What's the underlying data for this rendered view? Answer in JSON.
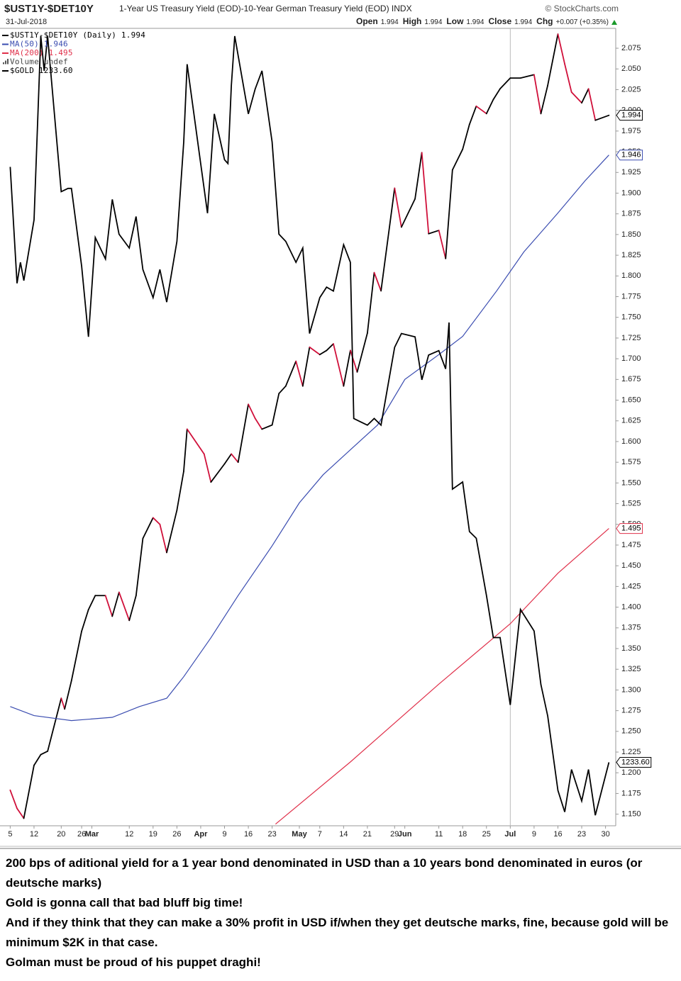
{
  "chart_data": {
    "type": "line",
    "title": "$UST1Y-$DET10Y",
    "subtitle": "1-Year US Treasury Yield (EOD)-10-Year German Treasury Yield (EOD) INDX",
    "source": "© StockCharts.com",
    "date": "31-Jul-2018",
    "quote": [
      {
        "label": "Open",
        "value": "1.994"
      },
      {
        "label": "High",
        "value": "1.994"
      },
      {
        "label": "Low",
        "value": "1.994"
      },
      {
        "label": "Close",
        "value": "1.994"
      },
      {
        "label": "Chg",
        "value": "+0.007 (+0.35%)"
      }
    ],
    "legend_notes": [
      "Volume undef"
    ],
    "xlim": [
      "2018-02-02",
      "2018-08-02"
    ],
    "xticks": [
      {
        "value": "2018-02-05",
        "label": "5"
      },
      {
        "value": "2018-02-12",
        "label": "12"
      },
      {
        "value": "2018-02-20",
        "label": "20"
      },
      {
        "value": "2018-02-26",
        "label": "26"
      },
      {
        "value": "2018-03-01",
        "label": "Mar"
      },
      {
        "value": "2018-03-12",
        "label": "12"
      },
      {
        "value": "2018-03-19",
        "label": "19"
      },
      {
        "value": "2018-03-26",
        "label": "26"
      },
      {
        "value": "2018-04-02",
        "label": "Apr"
      },
      {
        "value": "2018-04-09",
        "label": "9"
      },
      {
        "value": "2018-04-16",
        "label": "16"
      },
      {
        "value": "2018-04-23",
        "label": "23"
      },
      {
        "value": "2018-05-01",
        "label": "May"
      },
      {
        "value": "2018-05-07",
        "label": "7"
      },
      {
        "value": "2018-05-14",
        "label": "14"
      },
      {
        "value": "2018-05-21",
        "label": "21"
      },
      {
        "value": "2018-05-29",
        "label": "29"
      },
      {
        "value": "2018-06-01",
        "label": "Jun"
      },
      {
        "value": "2018-06-11",
        "label": "11"
      },
      {
        "value": "2018-06-18",
        "label": "18"
      },
      {
        "value": "2018-06-25",
        "label": "25"
      },
      {
        "value": "2018-07-02",
        "label": "Jul"
      },
      {
        "value": "2018-07-09",
        "label": "9"
      },
      {
        "value": "2018-07-16",
        "label": "16"
      },
      {
        "value": "2018-07-23",
        "label": "23"
      },
      {
        "value": "2018-07-30",
        "label": "30"
      }
    ],
    "vline": "2018-07-02",
    "ylim": [
      1.136,
      2.099
    ],
    "yticks": [
      {
        "value": 1.15,
        "label": "1.150"
      },
      1.175,
      {
        "value": 1.2,
        "label": "1.200"
      },
      1.225,
      {
        "value": 1.25,
        "label": "1.250"
      },
      1.275,
      {
        "value": 1.3,
        "label": "1.300"
      },
      1.325,
      {
        "value": 1.35,
        "label": "1.350"
      },
      1.375,
      {
        "value": 1.4,
        "label": "1.400"
      },
      1.425,
      {
        "value": 1.45,
        "label": "1.450"
      },
      1.475,
      {
        "value": 1.5,
        "label": "1.500"
      },
      1.525,
      {
        "value": 1.55,
        "label": "1.550"
      },
      1.575,
      {
        "value": 1.6,
        "label": "1.600"
      },
      1.625,
      {
        "value": 1.65,
        "label": "1.650"
      },
      1.675,
      {
        "value": 1.7,
        "label": "1.700"
      },
      1.725,
      {
        "value": 1.75,
        "label": "1.750"
      },
      1.775,
      {
        "value": 1.8,
        "label": "1.800"
      },
      1.825,
      {
        "value": 1.85,
        "label": "1.850"
      },
      1.875,
      {
        "value": 1.9,
        "label": "1.900"
      },
      1.925,
      {
        "value": 1.95,
        "label": "1.950"
      },
      1.975,
      {
        "value": 2,
        "label": "2.000"
      },
      2.025,
      {
        "value": 2.05,
        "label": "2.050"
      },
      2.075
    ],
    "y2lim": [
      1222.1,
      1366.6
    ],
    "grid": false,
    "series": [
      {
        "name": "$UST1Y-$DET10Y (Daily) 1.994",
        "color": "#000000",
        "down_color": "#d0103a",
        "x": [
          "2018-02-05",
          "2018-02-07",
          "2018-02-09",
          "2018-02-12",
          "2018-02-14",
          "2018-02-16",
          "2018-02-20",
          "2018-02-21",
          "2018-02-23",
          "2018-02-26",
          "2018-02-28",
          "2018-03-02",
          "2018-03-05",
          "2018-03-07",
          "2018-03-09",
          "2018-03-12",
          "2018-03-14",
          "2018-03-16",
          "2018-03-19",
          "2018-03-21",
          "2018-03-23",
          "2018-03-26",
          "2018-03-28",
          "2018-03-29",
          "2018-04-03",
          "2018-04-05",
          "2018-04-09",
          "2018-04-11",
          "2018-04-13",
          "2018-04-16",
          "2018-04-18",
          "2018-04-20",
          "2018-04-23",
          "2018-04-25",
          "2018-04-27",
          "2018-04-30",
          "2018-05-02",
          "2018-05-04",
          "2018-05-07",
          "2018-05-09",
          "2018-05-11",
          "2018-05-14",
          "2018-05-16",
          "2018-05-18",
          "2018-05-21",
          "2018-05-23",
          "2018-05-25",
          "2018-05-29",
          "2018-05-31",
          "2018-06-04",
          "2018-06-06",
          "2018-06-08",
          "2018-06-11",
          "2018-06-13",
          "2018-06-15",
          "2018-06-18",
          "2018-06-20",
          "2018-06-22",
          "2018-06-25",
          "2018-06-27",
          "2018-06-29",
          "2018-07-02",
          "2018-07-05",
          "2018-07-09",
          "2018-07-11",
          "2018-07-13",
          "2018-07-16",
          "2018-07-18",
          "2018-07-20",
          "2018-07-23",
          "2018-07-25",
          "2018-07-27",
          "2018-07-31"
        ],
        "values": [
          1.179,
          1.157,
          1.145,
          1.209,
          1.222,
          1.226,
          1.29,
          1.277,
          1.311,
          1.371,
          1.397,
          1.414,
          1.414,
          1.389,
          1.418,
          1.384,
          1.414,
          1.483,
          1.508,
          1.5,
          1.466,
          1.517,
          1.564,
          1.615,
          1.585,
          1.551,
          1.573,
          1.585,
          1.575,
          1.645,
          1.628,
          1.615,
          1.62,
          1.658,
          1.667,
          1.697,
          1.667,
          1.714,
          1.705,
          1.71,
          1.718,
          1.667,
          1.71,
          1.684,
          1.731,
          1.804,
          1.782,
          1.906,
          1.859,
          1.893,
          1.949,
          1.851,
          1.855,
          1.821,
          1.928,
          1.953,
          1.983,
          2.005,
          1.996,
          2.013,
          2.026,
          2.039,
          2.039,
          2.043,
          1.996,
          2.03,
          2.092,
          2.056,
          2.022,
          2.009,
          2.026,
          1.988,
          1.994
        ]
      },
      {
        "name": "MA(50) 1.946",
        "color": "#3a4cb0",
        "x": [
          "2018-02-05",
          "2018-02-12",
          "2018-02-23",
          "2018-03-07",
          "2018-03-15",
          "2018-03-23",
          "2018-03-28",
          "2018-04-05",
          "2018-04-13",
          "2018-04-23",
          "2018-05-01",
          "2018-05-08",
          "2018-05-16",
          "2018-05-24",
          "2018-06-01",
          "2018-06-11",
          "2018-06-18",
          "2018-06-28",
          "2018-07-06",
          "2018-07-16",
          "2018-07-24",
          "2018-07-31"
        ],
        "values": [
          1.28,
          1.269,
          1.263,
          1.267,
          1.28,
          1.29,
          1.316,
          1.363,
          1.414,
          1.474,
          1.526,
          1.56,
          1.59,
          1.62,
          1.675,
          1.705,
          1.727,
          1.782,
          1.829,
          1.876,
          1.915,
          1.946
        ]
      },
      {
        "name": "MA(200) 1.495",
        "color": "#e0304a",
        "x": [
          "2018-04-24",
          "2018-05-16",
          "2018-06-11",
          "2018-07-02",
          "2018-07-16",
          "2018-07-31"
        ],
        "values": [
          1.138,
          1.213,
          1.307,
          1.38,
          1.441,
          1.495
        ]
      },
      {
        "name": "$GOLD 1233.60",
        "color": "#000000",
        "axis": "y2",
        "x": [
          "2018-02-05",
          "2018-02-07",
          "2018-02-08",
          "2018-02-09",
          "2018-02-12",
          "2018-02-14",
          "2018-02-15",
          "2018-02-16",
          "2018-02-20",
          "2018-02-22",
          "2018-02-23",
          "2018-02-26",
          "2018-02-28",
          "2018-03-02",
          "2018-03-05",
          "2018-03-07",
          "2018-03-09",
          "2018-03-12",
          "2018-03-14",
          "2018-03-16",
          "2018-03-19",
          "2018-03-21",
          "2018-03-23",
          "2018-03-26",
          "2018-03-28",
          "2018-03-29",
          "2018-04-02",
          "2018-04-04",
          "2018-04-06",
          "2018-04-09",
          "2018-04-10",
          "2018-04-11",
          "2018-04-12",
          "2018-04-16",
          "2018-04-18",
          "2018-04-20",
          "2018-04-23",
          "2018-04-25",
          "2018-04-27",
          "2018-04-30",
          "2018-05-02",
          "2018-05-04",
          "2018-05-07",
          "2018-05-09",
          "2018-05-11",
          "2018-05-14",
          "2018-05-16",
          "2018-05-17",
          "2018-05-21",
          "2018-05-23",
          "2018-05-25",
          "2018-05-29",
          "2018-05-31",
          "2018-06-04",
          "2018-06-06",
          "2018-06-08",
          "2018-06-11",
          "2018-06-13",
          "2018-06-14",
          "2018-06-15",
          "2018-06-18",
          "2018-06-20",
          "2018-06-22",
          "2018-06-25",
          "2018-06-27",
          "2018-06-29",
          "2018-07-02",
          "2018-07-05",
          "2018-07-09",
          "2018-07-11",
          "2018-07-13",
          "2018-07-16",
          "2018-07-18",
          "2018-07-20",
          "2018-07-23",
          "2018-07-25",
          "2018-07-27",
          "2018-07-31"
        ],
        "values": [
          1341.5,
          1320.4,
          1324.2,
          1320.9,
          1331.9,
          1365.2,
          1358.9,
          1365.2,
          1337.0,
          1337.6,
          1337.6,
          1323.5,
          1310.7,
          1328.7,
          1324.8,
          1335.6,
          1329.3,
          1326.8,
          1332.5,
          1322.9,
          1317.8,
          1322.9,
          1317.0,
          1328.0,
          1346.0,
          1360.1,
          1342.1,
          1333.1,
          1351.1,
          1342.8,
          1342.1,
          1356.2,
          1365.2,
          1351.1,
          1355.6,
          1358.9,
          1346.0,
          1329.3,
          1328.0,
          1324.2,
          1326.8,
          1311.3,
          1317.8,
          1319.7,
          1319.0,
          1327.4,
          1324.2,
          1295.9,
          1294.7,
          1295.9,
          1294.7,
          1308.8,
          1311.3,
          1310.7,
          1302.9,
          1307.4,
          1308.2,
          1304.9,
          1313.3,
          1283.1,
          1284.4,
          1275.4,
          1274.2,
          1263.8,
          1256.2,
          1256.2,
          1244.0,
          1261.3,
          1257.4,
          1247.7,
          1242.0,
          1228.5,
          1224.6,
          1232.3,
          1226.6,
          1232.3,
          1224.0,
          1233.6
        ],
        "value_labels": [
          null,
          null,
          null,
          null,
          null,
          null,
          null,
          null,
          null,
          null,
          null,
          null,
          null,
          null,
          null,
          null,
          null,
          null,
          null,
          null,
          null,
          null,
          null,
          null,
          null,
          null,
          null,
          null,
          null,
          null,
          null,
          null,
          null,
          null,
          null,
          null,
          null,
          null,
          null,
          null,
          null,
          null,
          null,
          null,
          null,
          null,
          null,
          null,
          null,
          null,
          null,
          null,
          null,
          null,
          null,
          null,
          null,
          null,
          null,
          null,
          null,
          null,
          null,
          null,
          null,
          null,
          null,
          null,
          null,
          null,
          null,
          null,
          null,
          null,
          null,
          null,
          null,
          "1233.60"
        ]
      }
    ]
  },
  "caption": [
    "200 bps of aditional yield for a 1 year bond denominated in USD than a 10 years bond denominated in euros (or deutsche marks)",
    "Gold is gonna call that bad bluff big time!",
    "And if they think that they can make a 30% profit in USD if/when they get deutsche marks, fine, because gold will be minimum $2K in that case.",
    "Golman must be proud of his puppet draghi!"
  ]
}
